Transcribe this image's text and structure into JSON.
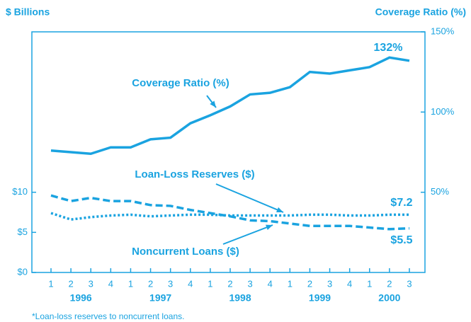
{
  "chart_data": {
    "type": "line",
    "y_axis_label": "$ Billions",
    "y2_axis_label": "Coverage Ratio  (%)",
    "footnote": "*Loan-loss reserves to noncurrent loans.",
    "categories": [
      "1",
      "2",
      "3",
      "4",
      "1",
      "2",
      "3",
      "4",
      "1",
      "2",
      "3",
      "4",
      "1",
      "2",
      "3",
      "4",
      "1",
      "2",
      "3"
    ],
    "years": [
      "1996",
      "1997",
      "1998",
      "1999",
      "2000"
    ],
    "ylim": [
      0,
      30
    ],
    "yticks": [
      {
        "value": 0,
        "label": "$0"
      },
      {
        "value": 5,
        "label": "$5"
      },
      {
        "value": 10,
        "label": "$10"
      }
    ],
    "y2lim": [
      0,
      150
    ],
    "y2ticks": [
      {
        "value": 50,
        "label": "50%"
      },
      {
        "value": 100,
        "label": "100%"
      },
      {
        "value": 150,
        "label": "150%"
      }
    ],
    "series": [
      {
        "name": "Coverage Ratio  (%)",
        "axis": "y2",
        "color": "#1aa3e0",
        "style": "solid",
        "values": [
          76,
          75,
          74,
          78,
          78,
          83,
          84,
          93,
          98,
          103.5,
          111,
          112,
          115.5,
          125,
          124,
          126,
          128,
          134,
          132
        ],
        "value_labels": [
          null,
          null,
          null,
          null,
          null,
          null,
          null,
          null,
          null,
          null,
          null,
          null,
          null,
          null,
          null,
          null,
          null,
          null,
          "132%"
        ]
      },
      {
        "name": "Loan-Loss Reserves  ($)",
        "color": "#1aa3e0",
        "style": "dotted",
        "values": [
          7.4,
          6.6,
          6.9,
          7.1,
          7.2,
          7.0,
          7.1,
          7.2,
          7.2,
          7.1,
          7.1,
          7.1,
          7.1,
          7.2,
          7.2,
          7.1,
          7.1,
          7.2,
          7.2
        ],
        "value_labels": [
          null,
          null,
          null,
          null,
          null,
          null,
          null,
          null,
          null,
          null,
          null,
          null,
          null,
          null,
          null,
          null,
          null,
          null,
          "$7.2"
        ]
      },
      {
        "name": "Noncurrent Loans  ($)",
        "color": "#1aa3e0",
        "style": "dashed",
        "values": [
          9.6,
          8.9,
          9.3,
          8.9,
          8.9,
          8.4,
          8.3,
          7.8,
          7.4,
          7.0,
          6.5,
          6.4,
          6.1,
          5.8,
          5.8,
          5.8,
          5.6,
          5.4,
          5.5
        ],
        "value_labels": [
          null,
          null,
          null,
          null,
          null,
          null,
          null,
          null,
          null,
          null,
          null,
          null,
          null,
          null,
          null,
          null,
          null,
          null,
          "$5.5"
        ]
      }
    ]
  }
}
